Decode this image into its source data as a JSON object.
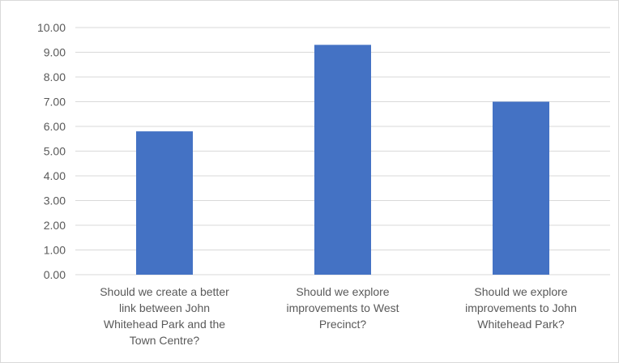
{
  "chart_data": {
    "type": "bar",
    "title": "",
    "xlabel": "",
    "ylabel": "",
    "categories": [
      [
        "Should we create a better",
        "link between John",
        "Whitehead Park and the",
        "Town Centre?"
      ],
      [
        "Should we explore",
        "improvements to West",
        "Precinct?"
      ],
      [
        "Should we explore",
        "improvements to John",
        "Whitehead Park?"
      ]
    ],
    "values": [
      5.8,
      9.3,
      7.0
    ],
    "ylim": [
      0,
      10
    ],
    "yticks": [
      "0.00",
      "1.00",
      "2.00",
      "3.00",
      "4.00",
      "5.00",
      "6.00",
      "7.00",
      "8.00",
      "9.00",
      "10.00"
    ],
    "grid": true,
    "legend": "none",
    "colors": {
      "bar": "#4472c4",
      "grid": "#d9d9d9",
      "text": "#595959"
    }
  }
}
